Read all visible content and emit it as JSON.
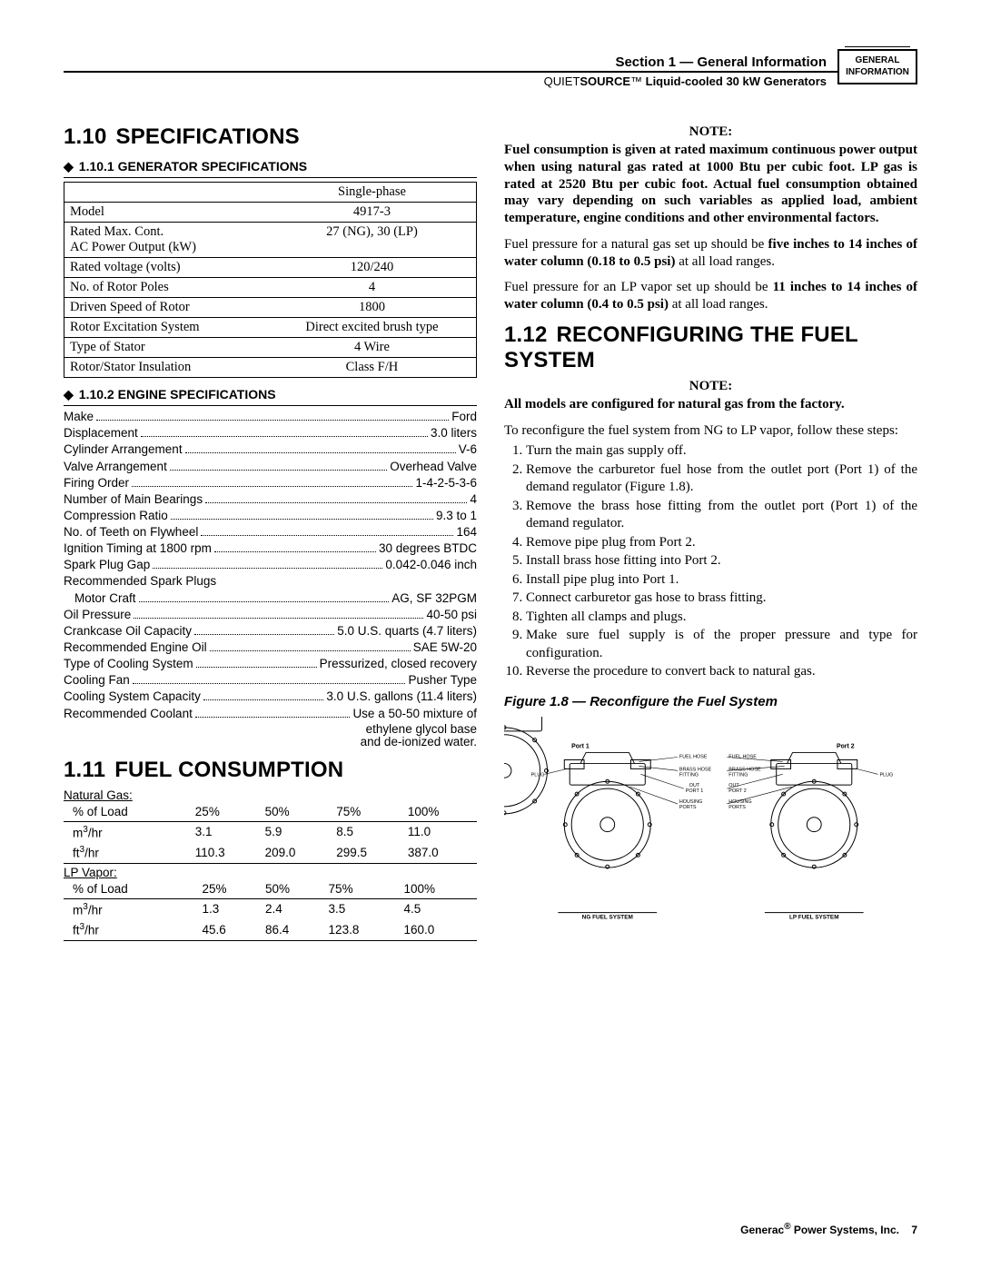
{
  "header": {
    "section_label": "Section 1 — General Information",
    "product_prefix": "QUIET",
    "product_bold": "SOURCE",
    "product_tm": "™",
    "product_suffix": " Liquid-cooled 30 kW Generators",
    "tag_line1": "GENERAL",
    "tag_line2": "INFORMATION"
  },
  "sec110": {
    "num": "1.10",
    "title": "SPECIFICATIONS",
    "sub1_num": "1.10.1",
    "sub1_title": "GENERATOR SPECIFICATIONS",
    "spec_table": {
      "header": "Single-phase",
      "rows": [
        {
          "k": "Model",
          "v": "4917-3"
        },
        {
          "k": "Rated Max. Cont.\nAC Power Output (kW)",
          "v": "27 (NG), 30 (LP)"
        },
        {
          "k": "Rated voltage (volts)",
          "v": "120/240"
        },
        {
          "k": "No. of Rotor Poles",
          "v": "4"
        },
        {
          "k": "Driven Speed of Rotor",
          "v": "1800"
        },
        {
          "k": "Rotor Excitation System",
          "v": "Direct excited brush type"
        },
        {
          "k": "Type of Stator",
          "v": "4 Wire"
        },
        {
          "k": "Rotor/Stator Insulation",
          "v": "Class F/H"
        }
      ]
    },
    "sub2_num": "1.10.2",
    "sub2_title": "ENGINE SPECIFICATIONS",
    "engine": [
      {
        "k": "Make",
        "v": "Ford"
      },
      {
        "k": "Displacement",
        "v": "3.0 liters"
      },
      {
        "k": "Cylinder Arrangement",
        "v": "V-6"
      },
      {
        "k": "Valve Arrangement",
        "v": "Overhead Valve"
      },
      {
        "k": "Firing Order",
        "v": "1-4-2-5-3-6"
      },
      {
        "k": "Number of Main Bearings",
        "v": "4"
      },
      {
        "k": "Compression Ratio",
        "v": "9.3 to 1"
      },
      {
        "k": "No. of Teeth on Flywheel",
        "v": "164"
      },
      {
        "k": "Ignition Timing at 1800 rpm",
        "v": "30 degrees BTDC"
      },
      {
        "k": "Spark Plug Gap",
        "v": "0.042-0.046 inch"
      },
      {
        "k": "Recommended Spark Plugs",
        "v": ""
      },
      {
        "k": "Motor Craft",
        "v": "AG, SF 32PGM",
        "indent": true
      },
      {
        "k": "Oil Pressure",
        "v": "40-50 psi"
      },
      {
        "k": "Crankcase Oil Capacity",
        "v": "5.0 U.S. quarts (4.7 liters)"
      },
      {
        "k": "Recommended Engine Oil",
        "v": "SAE 5W-20"
      },
      {
        "k": "Type of Cooling System",
        "v": "Pressurized, closed recovery"
      },
      {
        "k": "Cooling Fan",
        "v": "Pusher Type"
      },
      {
        "k": "Cooling System Capacity",
        "v": "3.0 U.S. gallons (11.4 liters)"
      },
      {
        "k": "Recommended Coolant",
        "v": "Use a 50-50 mixture of"
      }
    ],
    "engine_tail1": "ethylene glycol base",
    "engine_tail2": "and de-ionized water."
  },
  "sec111": {
    "num": "1.11",
    "title": "FUEL CONSUMPTION",
    "ng_label": "Natural Gas:",
    "lp_label": "LP Vapor:",
    "headers": [
      "% of Load",
      "25%",
      "50%",
      "75%",
      "100%"
    ],
    "ng_rows": [
      {
        "u": "m³/hr",
        "c": [
          "3.1",
          "5.9",
          "8.5",
          "11.0"
        ]
      },
      {
        "u": "ft³/hr",
        "c": [
          "110.3",
          "209.0",
          "299.5",
          "387.0"
        ]
      }
    ],
    "lp_rows": [
      {
        "u": "m³/hr",
        "c": [
          "1.3",
          "2.4",
          "3.5",
          "4.5"
        ]
      },
      {
        "u": "ft³/hr",
        "c": [
          "45.6",
          "86.4",
          "123.8",
          "160.0"
        ]
      }
    ]
  },
  "right": {
    "note_label": "NOTE:",
    "note1": "Fuel consumption is given at rated maximum continuous power output when using natural gas rated at 1000 Btu per cubic foot. LP gas is rated at 2520 Btu per cubic foot. Actual fuel consumption obtained may vary depending on such variables as applied load, ambient temperature, engine conditions and other environmental factors.",
    "p2_a": "Fuel pressure for a natural gas set up should be ",
    "p2_b": "five inches to 14 inches of water column (0.18 to 0.5 psi)",
    "p2_c": " at all load ranges.",
    "p3_a": "Fuel pressure for an LP vapor set up should be ",
    "p3_b": "11 inches to 14 inches of water column (0.4 to 0.5 psi)",
    "p3_c": " at all load ranges.",
    "sec112_num": "1.12",
    "sec112_title": "RECONFIGURING THE FUEL SYSTEM",
    "note2": "All models are configured for natural gas from the factory.",
    "p4": "To reconfigure the fuel system from NG to LP vapor, follow these steps:",
    "steps": [
      "Turn the main gas supply off.",
      "Remove the carburetor fuel hose from the outlet port (Port 1) of the demand regulator (Figure 1.8).",
      "Remove the brass hose fitting from the outlet port (Port 1) of the demand regulator.",
      "Remove pipe plug from Port 2.",
      "Install brass hose fitting into Port 2.",
      "Install pipe plug into Port 1.",
      "Connect carburetor gas hose to brass fitting.",
      "Tighten all clamps and plugs.",
      "Make sure fuel supply is of the proper pressure and type for configuration.",
      "Reverse the procedure to convert back to natural gas."
    ],
    "fig_caption": "Figure 1.8 — Reconfigure the Fuel System",
    "fig": {
      "port1": "Port 1",
      "port2": "Port 2",
      "fuel_hose": "FUEL HOSE",
      "brass": "BRASS HOSE\nFITTING",
      "out1": "OUT\nPORT 1",
      "out2": "OUT\nPORT 2",
      "housing": "HOUSING\nPORTS",
      "plug": "PLUG",
      "ng": "NG FUEL SYSTEM",
      "lp": "LP FUEL SYSTEM"
    }
  },
  "footer": {
    "brand_a": "Generac",
    "brand_reg": "®",
    "brand_b": " Power Systems, Inc.",
    "page": "7"
  }
}
